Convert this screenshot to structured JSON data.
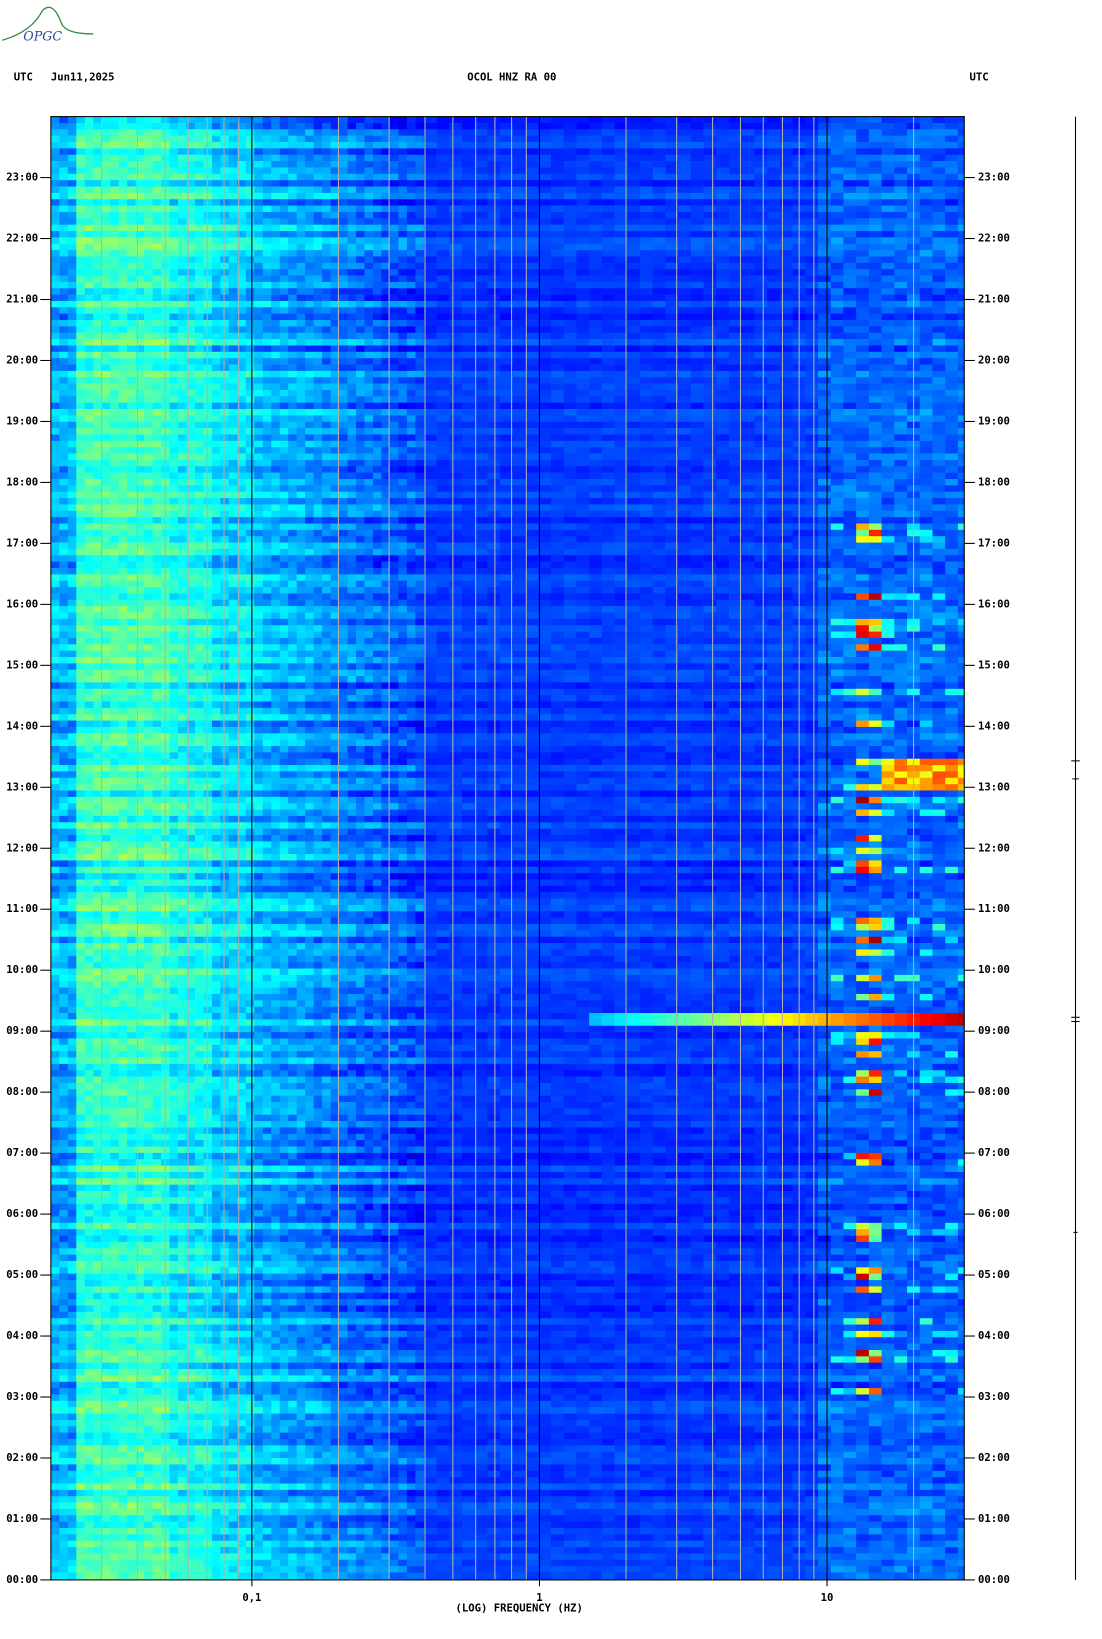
{
  "logo": "OPGC",
  "chart_data": {
    "type": "spectrogram",
    "header_left_zone": "UTC",
    "header_date": "Jun11,2025",
    "title": "OCOL HNZ RA 00",
    "header_right_zone": "UTC",
    "xlabel": "(LOG) FREQUENCY (HZ)",
    "xscale": "log",
    "xlim": [
      0.02,
      30
    ],
    "xticks": [
      {
        "value": 0.1,
        "label": "0,1"
      },
      1,
      10
    ],
    "xgrid": [
      0.03,
      0.04,
      0.05,
      0.06,
      0.07,
      0.08,
      0.09,
      0.2,
      0.3,
      0.4,
      0.5,
      0.6,
      0.7,
      0.8,
      0.9,
      2,
      3,
      4,
      5,
      6,
      7,
      8,
      9,
      20
    ],
    "ylim": [
      0,
      24
    ],
    "yticks": [
      {
        "value": 0,
        "label": "00:00"
      },
      {
        "value": 1,
        "label": "01:00"
      },
      {
        "value": 2,
        "label": "02:00"
      },
      {
        "value": 3,
        "label": "03:00"
      },
      {
        "value": 4,
        "label": "04:00"
      },
      {
        "value": 5,
        "label": "05:00"
      },
      {
        "value": 6,
        "label": "06:00"
      },
      {
        "value": 7,
        "label": "07:00"
      },
      {
        "value": 8,
        "label": "08:00"
      },
      {
        "value": 9,
        "label": "09:00"
      },
      {
        "value": 10,
        "label": "10:00"
      },
      {
        "value": 11,
        "label": "11:00"
      },
      {
        "value": 12,
        "label": "12:00"
      },
      {
        "value": 13,
        "label": "13:00"
      },
      {
        "value": 14,
        "label": "14:00"
      },
      {
        "value": 15,
        "label": "15:00"
      },
      {
        "value": 16,
        "label": "16:00"
      },
      {
        "value": 17,
        "label": "17:00"
      },
      {
        "value": 18,
        "label": "18:00"
      },
      {
        "value": 19,
        "label": "19:00"
      },
      {
        "value": 20,
        "label": "20:00"
      },
      {
        "value": 21,
        "label": "21:00"
      },
      {
        "value": 22,
        "label": "22:00"
      },
      {
        "value": 23,
        "label": "23:00"
      }
    ],
    "grid": true
  }
}
